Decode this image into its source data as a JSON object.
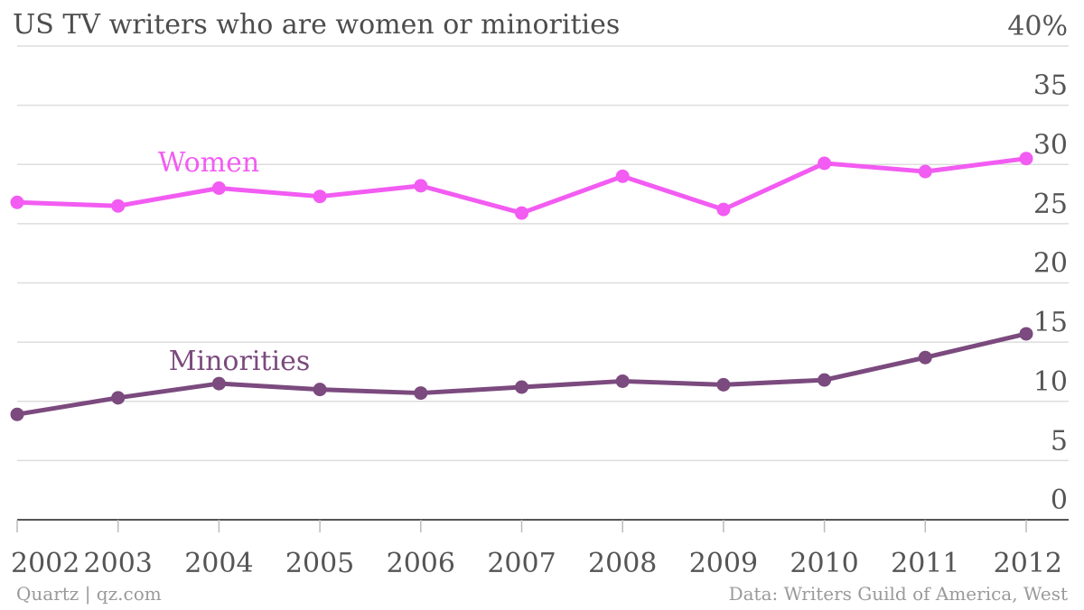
{
  "title": "US TV writers who are women or minorities",
  "source_left": "Quartz | qz.com",
  "source_right": "Data: Writers Guild of America, West",
  "colors": {
    "women": "#f25cf2",
    "minorities": "#7b4a7e",
    "grid": "#dddddd",
    "axis": "#555555",
    "text": "#555555"
  },
  "chart_data": {
    "type": "line",
    "x": [
      "2002",
      "2003",
      "2004",
      "2005",
      "2006",
      "2007",
      "2008",
      "2009",
      "2010",
      "2011",
      "2012"
    ],
    "ylim": [
      0,
      40
    ],
    "yticks": [
      "0",
      "5",
      "10",
      "15",
      "20",
      "25",
      "30",
      "35",
      "40%"
    ],
    "grid": true,
    "series": [
      {
        "name": "Women",
        "values": [
          26.8,
          26.5,
          28.0,
          27.3,
          28.2,
          25.9,
          29.0,
          26.2,
          30.1,
          29.4,
          30.5
        ]
      },
      {
        "name": "Minorities",
        "values": [
          8.9,
          10.3,
          11.5,
          11.0,
          10.7,
          11.2,
          11.7,
          11.4,
          11.8,
          13.7,
          15.7
        ]
      }
    ]
  }
}
